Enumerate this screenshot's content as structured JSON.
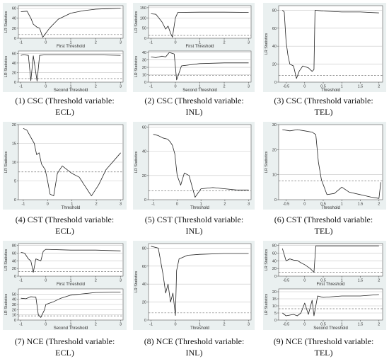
{
  "figure": {
    "captions": [
      {
        "line1": "(1) CSC (Threshold variable:",
        "line2": "ECL)"
      },
      {
        "line1": "(2) CSC (Threshold variable:",
        "line2": "INL)"
      },
      {
        "line1": "(3) CSC (Threshold variable:",
        "line2": "TEL)"
      },
      {
        "line1": "(4) CST (Threshold variable:",
        "line2": "ECL)"
      },
      {
        "line1": "(5) CST (Threshold variable:",
        "line2": "INL)"
      },
      {
        "line1": "(6) CST (Threshold variable:",
        "line2": "TEL)"
      },
      {
        "line1": "(7) NCE (Threshold variable:",
        "line2": "ECL)"
      },
      {
        "line1": "(8) NCE (Threshold variable:",
        "line2": "INL)"
      },
      {
        "line1": "(9) NCE (Threshold variable:",
        "line2": "TEL)"
      }
    ]
  },
  "chart_data": [
    {
      "type": "line",
      "panel": 1,
      "xlabel": "First Threshold",
      "ylabel": "LR Statistics",
      "xlim": [
        -1.1,
        3.1
      ],
      "ylim": [
        0,
        65
      ],
      "xticks": [
        "-1",
        "0",
        "1",
        "2",
        "3"
      ],
      "yticks": [
        "0",
        "20",
        "40",
        "60"
      ],
      "critical_value": 7.35,
      "series": [
        {
          "values": [
            [
              -1,
              53
            ],
            [
              -0.75,
              54
            ],
            [
              -0.6,
              40
            ],
            [
              -0.5,
              28
            ],
            [
              -0.35,
              22
            ],
            [
              -0.25,
              20
            ],
            [
              -0.12,
              2
            ],
            [
              0,
              10
            ],
            [
              0.15,
              20
            ],
            [
              0.5,
              38
            ],
            [
              1,
              50
            ],
            [
              1.5,
              55
            ],
            [
              2,
              58
            ],
            [
              2.5,
              59
            ],
            [
              3,
              60
            ]
          ]
        }
      ]
    },
    {
      "type": "line",
      "panel": 1,
      "xlabel": "Second Threshold",
      "ylabel": "LR Statistics",
      "xlim": [
        -1.1,
        3.1
      ],
      "ylim": [
        0,
        65
      ],
      "xticks": [
        "-1",
        "0",
        "1",
        "2",
        "3"
      ],
      "yticks": [
        "0",
        "20",
        "40",
        "60"
      ],
      "critical_value": 7.35,
      "series": [
        {
          "values": [
            [
              -1,
              56
            ],
            [
              -0.9,
              57
            ],
            [
              -0.7,
              56
            ],
            [
              -0.6,
              3
            ],
            [
              -0.5,
              55
            ],
            [
              -0.35,
              2
            ],
            [
              -0.25,
              56
            ],
            [
              0,
              57
            ],
            [
              1,
              57
            ],
            [
              2,
              57
            ],
            [
              3,
              56
            ]
          ]
        }
      ]
    },
    {
      "type": "line",
      "panel": 2,
      "xlabel": "First Threshold",
      "ylabel": "LR Statistics",
      "xlim": [
        -1.1,
        3.1
      ],
      "ylim": [
        0,
        160
      ],
      "xticks": [
        "-1",
        "0",
        "1",
        "2",
        "3"
      ],
      "yticks": [
        "0",
        "50",
        "100",
        "150"
      ],
      "critical_value": 14,
      "series": [
        {
          "values": [
            [
              -1,
              120
            ],
            [
              -0.8,
              118
            ],
            [
              -0.55,
              80
            ],
            [
              -0.4,
              45
            ],
            [
              -0.3,
              60
            ],
            [
              -0.2,
              25
            ],
            [
              -0.12,
              5
            ],
            [
              0,
              100
            ],
            [
              0.1,
              127
            ],
            [
              1,
              128
            ],
            [
              2,
              128
            ],
            [
              3,
              127
            ]
          ]
        }
      ]
    },
    {
      "type": "line",
      "panel": 2,
      "xlabel": "Second Threshold",
      "ylabel": "LR Statistics",
      "xlim": [
        -1.1,
        3.1
      ],
      "ylim": [
        0,
        42
      ],
      "xticks": [
        "-1",
        "0",
        "1",
        "2",
        "3"
      ],
      "yticks": [
        "0",
        "10",
        "20",
        "30",
        "40"
      ],
      "critical_value": 9,
      "series": [
        {
          "values": [
            [
              -1,
              34
            ],
            [
              -0.8,
              33
            ],
            [
              -0.55,
              35
            ],
            [
              -0.4,
              34
            ],
            [
              -0.25,
              40
            ],
            [
              -0.15,
              39
            ],
            [
              -0.05,
              38
            ],
            [
              0.05,
              3
            ],
            [
              0.25,
              22
            ],
            [
              1,
              25
            ],
            [
              2,
              26
            ],
            [
              3,
              26
            ]
          ]
        }
      ]
    },
    {
      "type": "line",
      "panel": 3,
      "xlabel": "Threshold",
      "ylabel": "LR Statistics",
      "xlim": [
        -0.7,
        2.1
      ],
      "ylim": [
        0,
        85
      ],
      "xticks": [
        "-0.5",
        "0",
        "0.5",
        "1",
        "1.5",
        "2"
      ],
      "yticks": [
        "0",
        "20",
        "40",
        "60",
        "80"
      ],
      "critical_value": 7.5,
      "series": [
        {
          "values": [
            [
              -0.6,
              80
            ],
            [
              -0.55,
              78
            ],
            [
              -0.5,
              45
            ],
            [
              -0.45,
              30
            ],
            [
              -0.4,
              20
            ],
            [
              -0.3,
              18
            ],
            [
              -0.22,
              4
            ],
            [
              -0.15,
              12
            ],
            [
              -0.05,
              18
            ],
            [
              0.1,
              16
            ],
            [
              0.2,
              12
            ],
            [
              0.25,
              14
            ],
            [
              0.28,
              80
            ],
            [
              0.5,
              79
            ],
            [
              1,
              78
            ],
            [
              1.5,
              78
            ],
            [
              2,
              77
            ]
          ]
        }
      ]
    },
    {
      "type": "line",
      "panel": 4,
      "xlabel": "Threshold",
      "ylabel": "LR Statistics",
      "xlim": [
        -1.2,
        3.1
      ],
      "ylim": [
        0,
        20
      ],
      "xticks": [
        "-1",
        "0",
        "1",
        "2",
        "3"
      ],
      "yticks": [
        "0",
        "5",
        "10",
        "15",
        "20"
      ],
      "critical_value": 7.4,
      "series": [
        {
          "values": [
            [
              -1,
              19
            ],
            [
              -0.85,
              18.5
            ],
            [
              -0.55,
              15
            ],
            [
              -0.45,
              12
            ],
            [
              -0.35,
              12.5
            ],
            [
              -0.25,
              9.5
            ],
            [
              -0.1,
              8
            ],
            [
              0,
              5
            ],
            [
              0.1,
              1.5
            ],
            [
              0.25,
              1
            ],
            [
              0.4,
              7
            ],
            [
              0.6,
              9
            ],
            [
              1,
              7
            ],
            [
              1.3,
              6
            ],
            [
              1.5,
              4
            ],
            [
              1.8,
              1
            ],
            [
              2.1,
              4
            ],
            [
              2.4,
              8
            ],
            [
              3,
              12.5
            ]
          ]
        }
      ]
    },
    {
      "type": "line",
      "panel": 5,
      "xlabel": "Threshold",
      "ylabel": "LR Statistics",
      "xlim": [
        -1.2,
        3.1
      ],
      "ylim": [
        0,
        62
      ],
      "xticks": [
        "-1",
        "0",
        "1",
        "2",
        "3"
      ],
      "yticks": [
        "0",
        "20",
        "40",
        "60"
      ],
      "critical_value": 7.4,
      "series": [
        {
          "values": [
            [
              -1,
              54
            ],
            [
              -0.8,
              53
            ],
            [
              -0.6,
              51
            ],
            [
              -0.4,
              50
            ],
            [
              -0.3,
              48
            ],
            [
              -0.2,
              45
            ],
            [
              -0.1,
              38
            ],
            [
              0,
              20
            ],
            [
              0.15,
              12
            ],
            [
              0.3,
              22
            ],
            [
              0.5,
              20
            ],
            [
              0.75,
              2
            ],
            [
              1,
              9
            ],
            [
              1.5,
              10
            ],
            [
              2,
              9
            ],
            [
              2.5,
              8
            ],
            [
              3,
              8
            ]
          ]
        }
      ]
    },
    {
      "type": "line",
      "panel": 6,
      "xlabel": "Threshold",
      "ylabel": "LR Statistics",
      "xlim": [
        -0.7,
        2.1
      ],
      "ylim": [
        0,
        30
      ],
      "xticks": [
        "-0.5",
        "0",
        "0.5",
        "1",
        "1.5",
        "2"
      ],
      "yticks": [
        "0",
        "10",
        "20",
        "30"
      ],
      "critical_value": 7.5,
      "series": [
        {
          "values": [
            [
              -0.6,
              28
            ],
            [
              -0.4,
              27.5
            ],
            [
              -0.2,
              28
            ],
            [
              0,
              27.5
            ],
            [
              0.2,
              27
            ],
            [
              0.3,
              26
            ],
            [
              0.37,
              15
            ],
            [
              0.45,
              8
            ],
            [
              0.6,
              2
            ],
            [
              0.8,
              2.5
            ],
            [
              1,
              5
            ],
            [
              1.2,
              3
            ],
            [
              1.5,
              2
            ],
            [
              1.8,
              1
            ],
            [
              2,
              0.5
            ],
            [
              2.05,
              7
            ]
          ]
        }
      ]
    },
    {
      "type": "line",
      "panel": 7,
      "xlabel": "First Threshold",
      "ylabel": "LR Statistics",
      "xlim": [
        -1.1,
        3.1
      ],
      "ylim": [
        0,
        85
      ],
      "xticks": [
        "-1",
        "0",
        "1",
        "2",
        "3"
      ],
      "yticks": [
        "0",
        "20",
        "40",
        "60",
        "80"
      ],
      "critical_value": 12,
      "series": [
        {
          "values": [
            [
              -1,
              62
            ],
            [
              -0.85,
              60
            ],
            [
              -0.7,
              45
            ],
            [
              -0.6,
              40
            ],
            [
              -0.5,
              10
            ],
            [
              -0.4,
              45
            ],
            [
              -0.2,
              40
            ],
            [
              -0.1,
              65
            ],
            [
              0,
              70
            ],
            [
              1,
              68
            ],
            [
              2,
              68
            ],
            [
              3,
              66
            ]
          ]
        }
      ]
    },
    {
      "type": "line",
      "panel": 7,
      "xlabel": "Second Threshold",
      "ylabel": "LR Statistics",
      "xlim": [
        -1.1,
        3.1
      ],
      "ylim": [
        0,
        60
      ],
      "xticks": [
        "-1",
        "0",
        "1",
        "2",
        "3"
      ],
      "yticks": [
        "0",
        "10",
        "20",
        "30",
        "40",
        "50"
      ],
      "critical_value": 8,
      "series": [
        {
          "values": [
            [
              -1,
              42
            ],
            [
              -0.8,
              41
            ],
            [
              -0.6,
              45
            ],
            [
              -0.4,
              44
            ],
            [
              -0.3,
              10
            ],
            [
              -0.2,
              5
            ],
            [
              -0.05,
              20
            ],
            [
              0,
              30
            ],
            [
              0.3,
              35
            ],
            [
              0.6,
              42
            ],
            [
              1,
              48
            ],
            [
              2,
              53
            ],
            [
              3,
              54
            ]
          ]
        }
      ]
    },
    {
      "type": "line",
      "panel": 8,
      "xlabel": "Threshold",
      "ylabel": "LR Statistics",
      "xlim": [
        -1.1,
        3.1
      ],
      "ylim": [
        0,
        85
      ],
      "xticks": [
        "-1",
        "0",
        "1",
        "2",
        "3"
      ],
      "yticks": [
        "0",
        "20",
        "40",
        "60",
        "80"
      ],
      "critical_value": 8,
      "series": [
        {
          "values": [
            [
              -1,
              82
            ],
            [
              -0.7,
              80
            ],
            [
              -0.5,
              50
            ],
            [
              -0.4,
              30
            ],
            [
              -0.3,
              40
            ],
            [
              -0.2,
              20
            ],
            [
              -0.1,
              30
            ],
            [
              0,
              5
            ],
            [
              0.05,
              55
            ],
            [
              0.15,
              68
            ],
            [
              0.5,
              72
            ],
            [
              1,
              73
            ],
            [
              2,
              74
            ],
            [
              3,
              74
            ]
          ]
        }
      ]
    },
    {
      "type": "line",
      "panel": 9,
      "xlabel": "First Threshold",
      "ylabel": "LR Statistics",
      "xlim": [
        -0.7,
        2.1
      ],
      "ylim": [
        0,
        85
      ],
      "xticks": [
        "-0.5",
        "0",
        "0.5",
        "1",
        "1.5",
        "2"
      ],
      "yticks": [
        "0",
        "20",
        "40",
        "60",
        "80"
      ],
      "critical_value": 10,
      "series": [
        {
          "values": [
            [
              -0.6,
              72
            ],
            [
              -0.5,
              40
            ],
            [
              -0.4,
              45
            ],
            [
              -0.3,
              42
            ],
            [
              -0.2,
              41
            ],
            [
              -0.1,
              35
            ],
            [
              0,
              30
            ],
            [
              0.15,
              20
            ],
            [
              0.25,
              10
            ],
            [
              0.3,
              79
            ],
            [
              1,
              79
            ],
            [
              2,
              79
            ]
          ]
        }
      ]
    },
    {
      "type": "line",
      "panel": 9,
      "xlabel": "Second Threshold",
      "ylabel": "LR Statistics",
      "xlim": [
        -0.7,
        2.1
      ],
      "ylim": [
        0,
        22
      ],
      "xticks": [
        "-0.5",
        "0",
        "0.5",
        "1",
        "1.5",
        "2"
      ],
      "yticks": [
        "0",
        "5",
        "10",
        "15",
        "20"
      ],
      "critical_value": 8,
      "series": [
        {
          "values": [
            [
              -0.6,
              5
            ],
            [
              -0.5,
              3
            ],
            [
              -0.3,
              4
            ],
            [
              -0.2,
              3
            ],
            [
              -0.1,
              5
            ],
            [
              0,
              12
            ],
            [
              0.1,
              4
            ],
            [
              0.2,
              14
            ],
            [
              0.25,
              3
            ],
            [
              0.35,
              17
            ],
            [
              0.5,
              16
            ],
            [
              1,
              17
            ],
            [
              1.5,
              17
            ],
            [
              2,
              18
            ]
          ]
        }
      ]
    }
  ]
}
